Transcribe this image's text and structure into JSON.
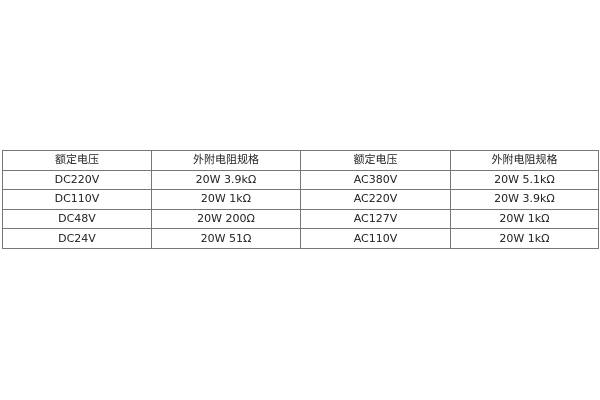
{
  "table": {
    "headers": [
      "额定电压",
      "外附电阻规格",
      "额定电压",
      "外附电阻规格"
    ],
    "rows": [
      [
        "DC220V",
        "20W 3.9kΩ",
        "AC380V",
        "20W 5.1kΩ"
      ],
      [
        "DC110V",
        "20W 1kΩ",
        "AC220V",
        "20W 3.9kΩ"
      ],
      [
        "DC48V",
        "20W 200Ω",
        "AC127V",
        "20W 1kΩ"
      ],
      [
        "DC24V",
        "20W 51Ω",
        "AC110V",
        "20W 1kΩ"
      ]
    ]
  }
}
